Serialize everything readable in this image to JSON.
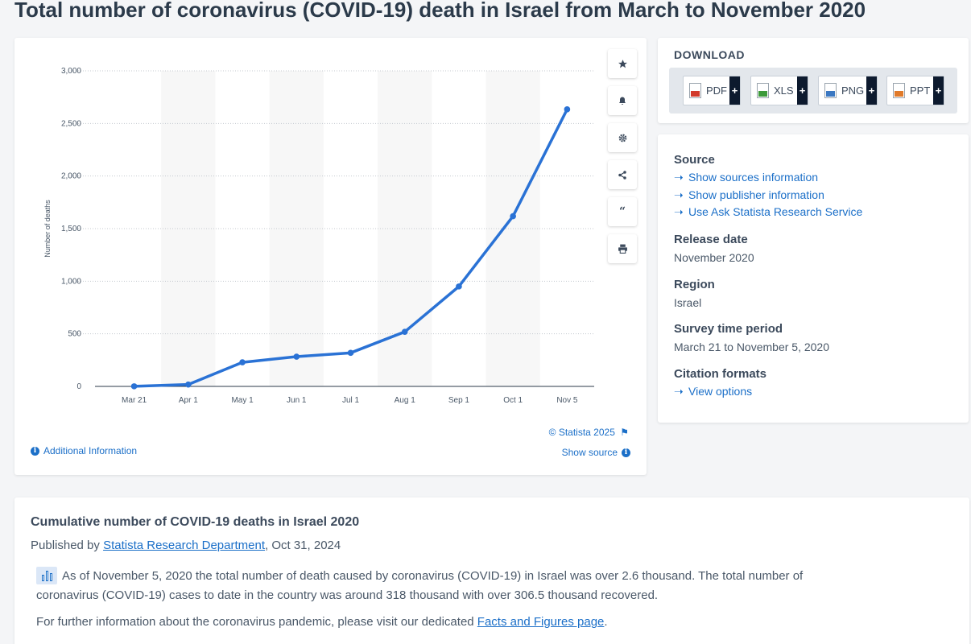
{
  "page": {
    "title": "Total number of coronavirus (COVID-19) death in Israel from March to November 2020"
  },
  "chart": {
    "credit": "© Statista 2025",
    "additional_info": "Additional Information",
    "show_source": "Show source"
  },
  "toolbar": {
    "icons": [
      "star-icon",
      "bell-icon",
      "gear-icon",
      "share-icon",
      "quote-icon",
      "print-icon"
    ]
  },
  "chart_data": {
    "type": "line",
    "ylabel": "Number of deaths",
    "xlabel": "",
    "categories": [
      "Mar 21",
      "Apr 1",
      "May 1",
      "Jun 1",
      "Jul 1",
      "Aug 1",
      "Sep 1",
      "Oct 1",
      "Nov 5"
    ],
    "values": [
      1,
      18,
      229,
      283,
      319,
      519,
      950,
      1618,
      2634
    ],
    "ylim": [
      0,
      3000
    ],
    "yticks": [
      0,
      500,
      1000,
      1500,
      2000,
      2500,
      3000
    ],
    "ytick_labels": [
      "0",
      "500",
      "1,000",
      "1,500",
      "2,000",
      "2,500",
      "3,000"
    ],
    "grid": true,
    "line_color": "#2a72d5",
    "band_color": "#f7f7f7"
  },
  "download": {
    "title": "DOWNLOAD",
    "buttons": [
      {
        "label": "PDF",
        "icon": "pdf-icon",
        "color": "#d23a2c"
      },
      {
        "label": "XLS",
        "icon": "xls-icon",
        "color": "#3c9a3a"
      },
      {
        "label": "PNG",
        "icon": "png-icon",
        "color": "#3b78c2"
      },
      {
        "label": "PPT",
        "icon": "ppt-icon",
        "color": "#e07a2a"
      }
    ],
    "plus": "+"
  },
  "meta": {
    "source_heading": "Source",
    "source_links": [
      "Show sources information",
      "Show publisher information",
      "Use Ask Statista Research Service"
    ],
    "release_heading": "Release date",
    "release_value": "November 2020",
    "region_heading": "Region",
    "region_value": "Israel",
    "survey_heading": "Survey time period",
    "survey_value": "March 21 to November 5, 2020",
    "citation_heading": "Citation formats",
    "citation_link": "View options"
  },
  "description": {
    "title": "Cumulative number of COVID-19 deaths in Israel 2020",
    "published_prefix": "Published by ",
    "publisher": "Statista Research Department",
    "published_suffix": ", Oct 31, 2024",
    "paragraph1": "As of November 5, 2020 the total number of death caused by coronavirus (COVID-19) in Israel was over 2.6 thousand. The total number of coronavirus (COVID-19) cases to date in the country was around 318 thousand with over 306.5 thousand recovered.",
    "paragraph2_prefix": "For further information about the coronavirus pandemic, please visit our dedicated ",
    "paragraph2_link": "Facts and Figures page",
    "paragraph2_suffix": "."
  },
  "colors": {
    "accent": "#1b6fc8",
    "title_text": "#2b3a4a"
  }
}
